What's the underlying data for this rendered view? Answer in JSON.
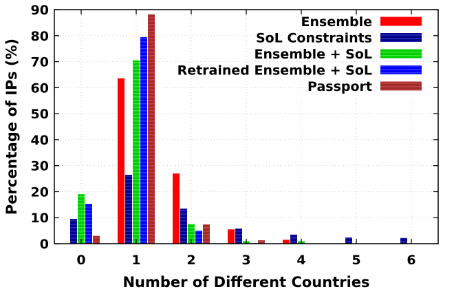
{
  "chart_data": {
    "type": "bar",
    "xlabel": "Number of Different Countries",
    "ylabel": "Percentage of IPs (%)",
    "ylim": [
      0,
      90
    ],
    "yticks": [
      0,
      10,
      20,
      30,
      40,
      50,
      60,
      70,
      80,
      90
    ],
    "categories": [
      "0",
      "1",
      "2",
      "3",
      "4",
      "5",
      "6"
    ],
    "grid": true,
    "legend_position": "top-right",
    "series": [
      {
        "name": "Ensemble",
        "color": "#ff0000",
        "pattern": "solid",
        "values": [
          0,
          63.6,
          27,
          5.5,
          1.5,
          0,
          0
        ]
      },
      {
        "name": "SoL Constraints",
        "color": "#00008b",
        "pattern": "dashed",
        "values": [
          9.5,
          26.5,
          13.5,
          5.8,
          3.5,
          2.4,
          2.2
        ]
      },
      {
        "name": "Ensemble + SoL",
        "color": "#00cc00",
        "pattern": "dashed",
        "values": [
          19,
          70.5,
          7.6,
          1,
          1,
          0,
          0
        ]
      },
      {
        "name": "Retrained Ensemble + SoL",
        "color": "#0000ff",
        "pattern": "dashed",
        "values": [
          15.3,
          79.4,
          5,
          0.2,
          0,
          0,
          0
        ]
      },
      {
        "name": "Passport",
        "color": "#a52a2a",
        "pattern": "dashed",
        "values": [
          3,
          88.2,
          7.4,
          1.3,
          0,
          0,
          0
        ]
      }
    ]
  }
}
